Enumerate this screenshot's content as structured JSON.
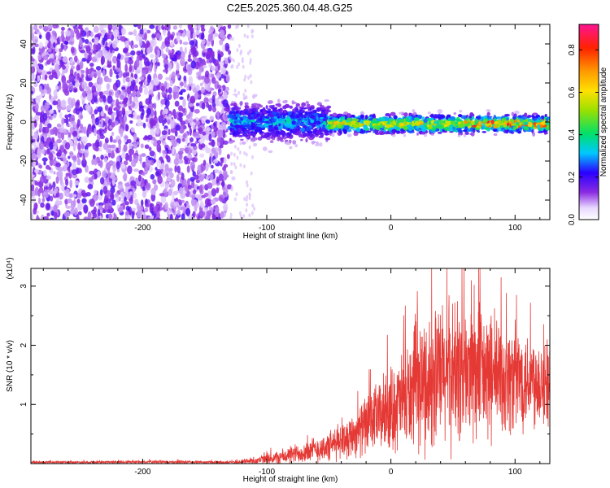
{
  "figure": {
    "title": "C2E5.2025.360.04.48.G25"
  },
  "chart_data": [
    {
      "type": "heatmap",
      "xlabel": "Height of straight line (km)",
      "ylabel": "Frequency (Hz)",
      "xlim": [
        -290,
        128
      ],
      "ylim": [
        -50,
        50
      ],
      "x_ticks": [
        -200,
        -100,
        0,
        100
      ],
      "x_tick_labels": [
        "-200",
        "-100",
        "0",
        "100"
      ],
      "y_ticks": [
        -40,
        -20,
        0,
        20,
        40
      ],
      "y_tick_labels": [
        "-40",
        "-20",
        "0",
        "20",
        "40"
      ],
      "colorbar": {
        "label": "Normalized spectral amplitude",
        "range": [
          0,
          0.92
        ],
        "ticks": [
          0.0,
          0.2,
          0.4,
          0.6,
          0.8
        ],
        "tick_labels": [
          "0.0",
          "0.2",
          "0.4",
          "0.6",
          "0.8"
        ],
        "colormap": "rainbow (white-purple-blue-cyan-green-yellow-orange-red-magenta)"
      },
      "regions": [
        {
          "x_range": [
            -290,
            -130
          ],
          "freq_range": [
            -50,
            50
          ],
          "description": "broadband noise",
          "amplitude": 0.05
        },
        {
          "x_range": [
            -130,
            -50
          ],
          "freq_center": 0,
          "freq_halfwidth": 8,
          "amplitude": 0.25
        },
        {
          "x_range": [
            -50,
            128
          ],
          "freq_center": -1,
          "freq_halfwidth": 4,
          "amplitude": 0.5,
          "peak_amplitude": 0.85
        }
      ]
    },
    {
      "type": "line",
      "xlabel": "Height of straight line (km)",
      "ylabel": "SNR (10 * v/v)",
      "y_multiplier": "(x10⁴)",
      "xlim": [
        -290,
        128
      ],
      "ylim": [
        0,
        3.3
      ],
      "x_ticks": [
        -200,
        -100,
        0,
        100
      ],
      "x_tick_labels": [
        "-200",
        "-100",
        "0",
        "100"
      ],
      "y_ticks": [
        1,
        2,
        3
      ],
      "y_tick_labels": [
        "1",
        "2",
        "3"
      ],
      "color": "#e53935",
      "envelope": {
        "x": [
          -290,
          -200,
          -130,
          -110,
          -90,
          -70,
          -50,
          -30,
          -10,
          10,
          20,
          30,
          50,
          70,
          90,
          110,
          128
        ],
        "mean": [
          0.02,
          0.03,
          0.02,
          0.05,
          0.1,
          0.2,
          0.28,
          0.5,
          0.8,
          1.05,
          1.25,
          1.4,
          1.55,
          1.5,
          1.45,
          1.45,
          1.4
        ],
        "amp": [
          0.02,
          0.03,
          0.03,
          0.08,
          0.15,
          0.22,
          0.3,
          0.45,
          0.7,
          1.0,
          1.2,
          1.4,
          1.5,
          1.4,
          1.2,
          1.0,
          0.9
        ]
      }
    }
  ]
}
